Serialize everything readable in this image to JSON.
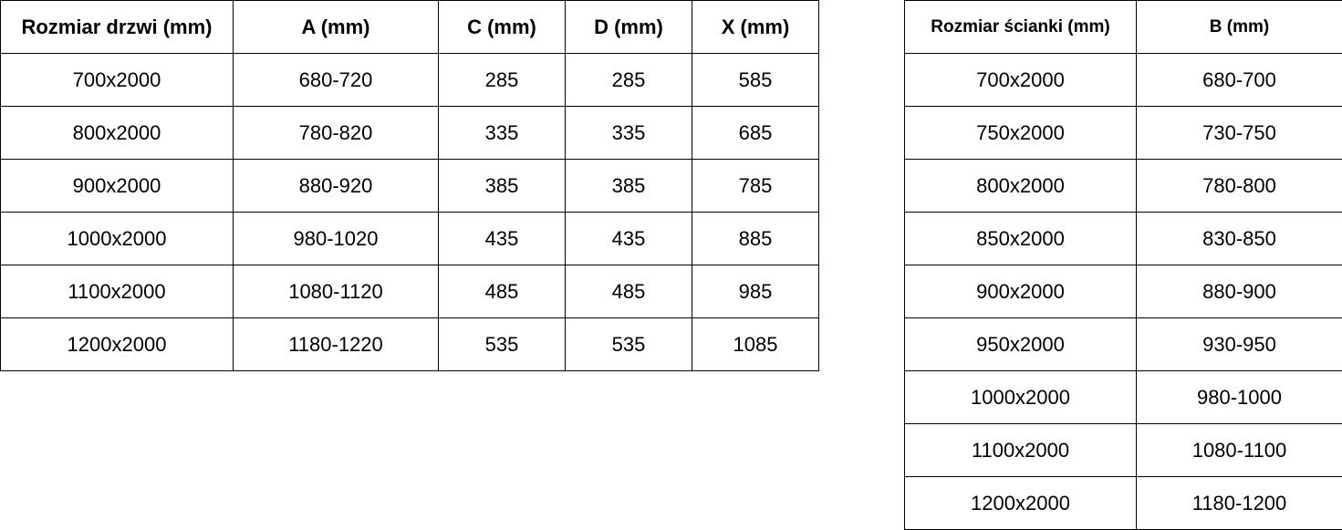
{
  "door_table": {
    "headers": [
      "Rozmiar drzwi (mm)",
      "A (mm)",
      "C (mm)",
      "D (mm)",
      "X (mm)"
    ],
    "rows": [
      [
        "700x2000",
        "680-720",
        "285",
        "285",
        "585"
      ],
      [
        "800x2000",
        "780-820",
        "335",
        "335",
        "685"
      ],
      [
        "900x2000",
        "880-920",
        "385",
        "385",
        "785"
      ],
      [
        "1000x2000",
        "980-1020",
        "435",
        "435",
        "885"
      ],
      [
        "1100x2000",
        "1080-1120",
        "485",
        "485",
        "985"
      ],
      [
        "1200x2000",
        "1180-1220",
        "535",
        "535",
        "1085"
      ]
    ]
  },
  "wall_table": {
    "headers": [
      "Rozmiar ścianki (mm)",
      "B (mm)"
    ],
    "rows": [
      [
        "700x2000",
        "680-700"
      ],
      [
        "750x2000",
        "730-750"
      ],
      [
        "800x2000",
        "780-800"
      ],
      [
        "850x2000",
        "830-850"
      ],
      [
        "900x2000",
        "880-900"
      ],
      [
        "950x2000",
        "930-950"
      ],
      [
        "1000x2000",
        "980-1000"
      ],
      [
        "1100x2000",
        "1080-1100"
      ],
      [
        "1200x2000",
        "1180-1200"
      ]
    ]
  }
}
